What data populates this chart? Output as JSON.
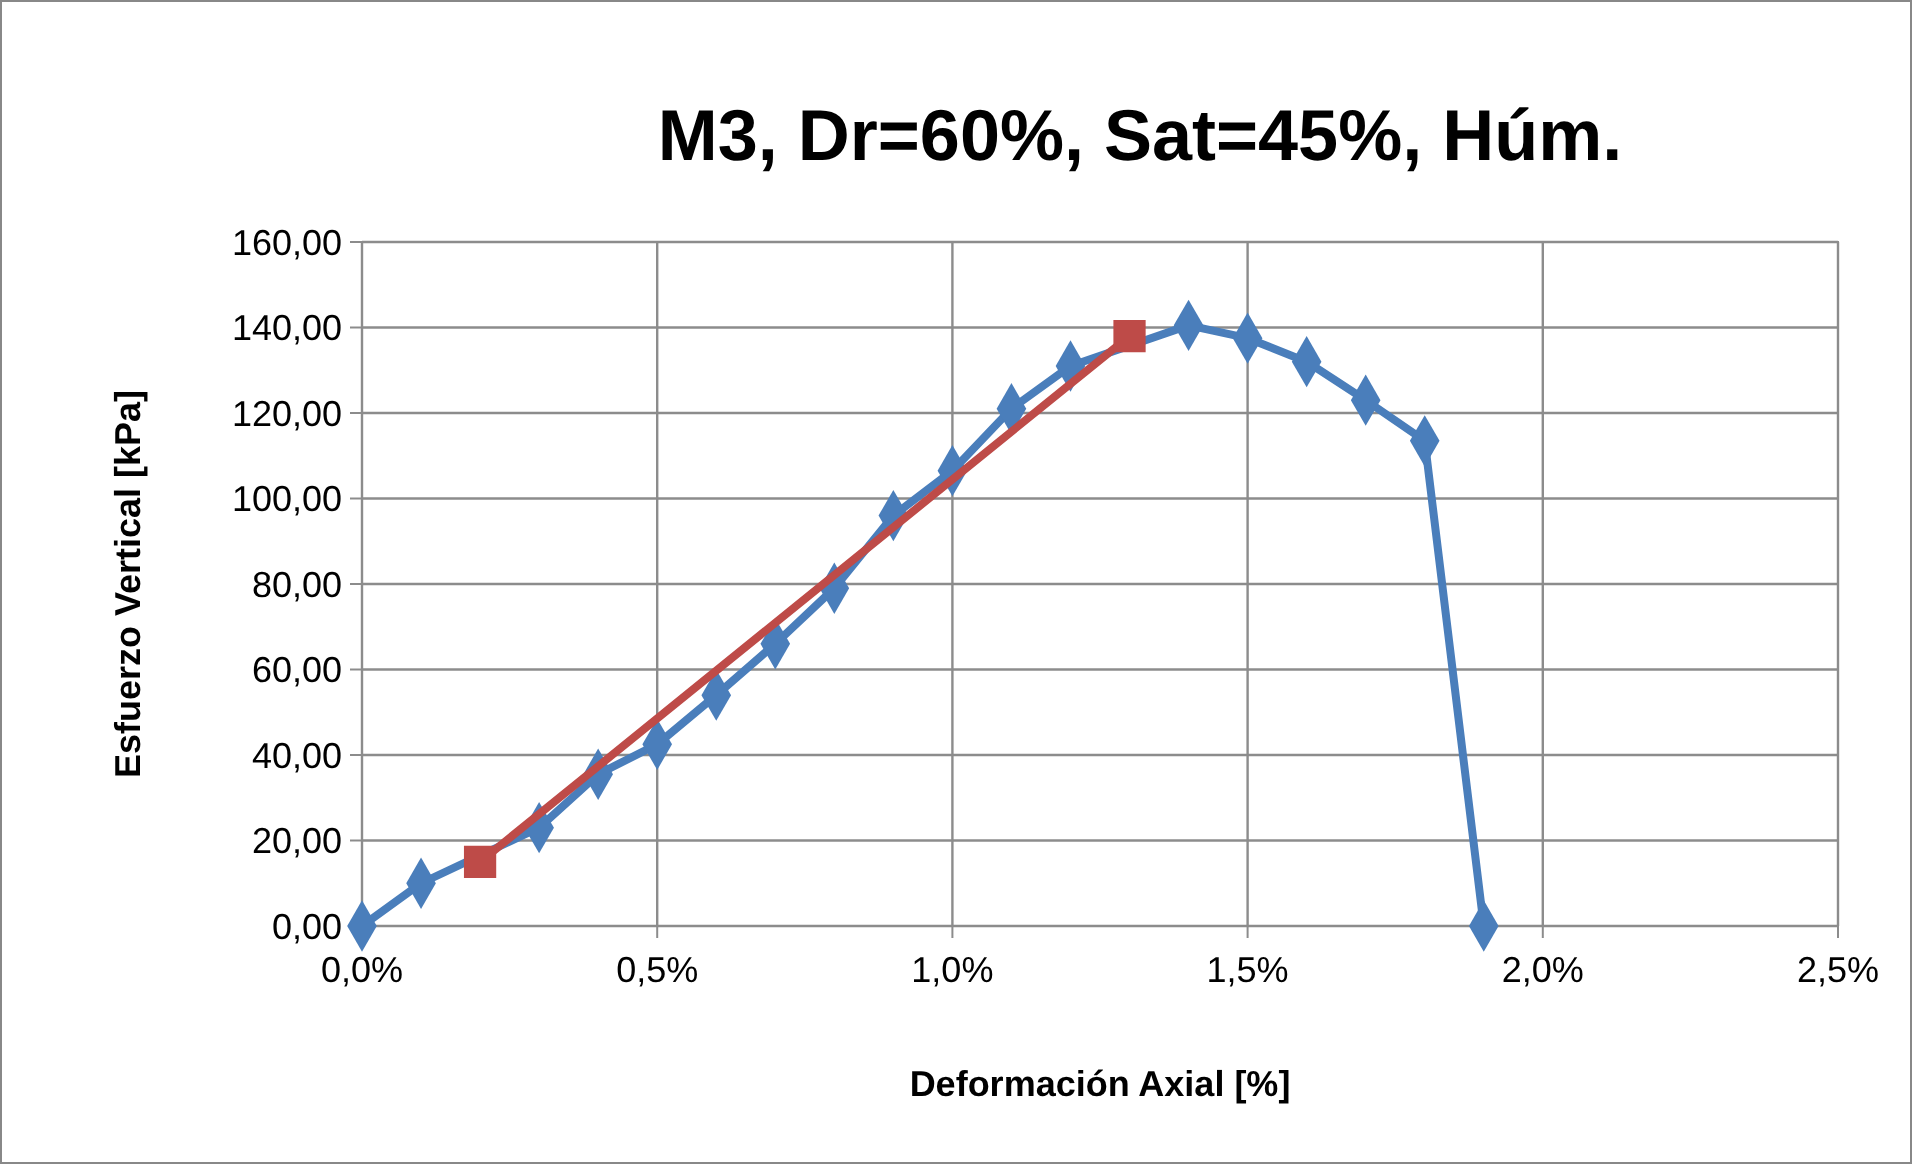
{
  "chart_data": {
    "type": "line",
    "title": "M3, Dr=60%, Sat=45%, Húm.",
    "xlabel": "Deformación Axial [%]",
    "ylabel": "Esfuerzo Vertical [kPa]",
    "series": [
      {
        "color": "#4a7ebb",
        "marker": "diamond",
        "x": [
          0,
          0.1,
          0.2,
          0.3,
          0.4,
          0.5,
          0.6,
          0.7,
          0.8,
          0.9,
          1.0,
          1.1,
          1.2,
          1.3,
          1.4,
          1.5,
          1.6,
          1.7,
          1.8,
          1.9
        ],
        "values": [
          0,
          10,
          null,
          23,
          35.5,
          42.5,
          54,
          66,
          79,
          96,
          106.5,
          121,
          131,
          null,
          140.5,
          137.5,
          132,
          123,
          113.5,
          0
        ]
      },
      {
        "color": "#be4b48",
        "marker": "square",
        "x": [
          0.2,
          1.3
        ],
        "values": [
          15,
          138
        ]
      }
    ],
    "xlim": [
      0,
      2.5
    ],
    "xticks": [
      {
        "value": 0,
        "label": "0,0%"
      },
      {
        "value": 0.5,
        "label": "0,5%"
      },
      {
        "value": 1,
        "label": "1,0%"
      },
      {
        "value": 1.5,
        "label": "1,5%"
      },
      {
        "value": 2,
        "label": "2,0%"
      },
      {
        "value": 2.5,
        "label": "2,5%"
      }
    ],
    "ylim": [
      0,
      160
    ],
    "yticks": [
      {
        "value": 0,
        "label": "0,00"
      },
      {
        "value": 20,
        "label": "20,00"
      },
      {
        "value": 40,
        "label": "40,00"
      },
      {
        "value": 60,
        "label": "60,00"
      },
      {
        "value": 80,
        "label": "80,00"
      },
      {
        "value": 100,
        "label": "100,00"
      },
      {
        "value": 120,
        "label": "120,00"
      },
      {
        "value": 140,
        "label": "140,00"
      },
      {
        "value": 160,
        "label": "160,00"
      }
    ],
    "grid": true,
    "line_style": "solid"
  }
}
